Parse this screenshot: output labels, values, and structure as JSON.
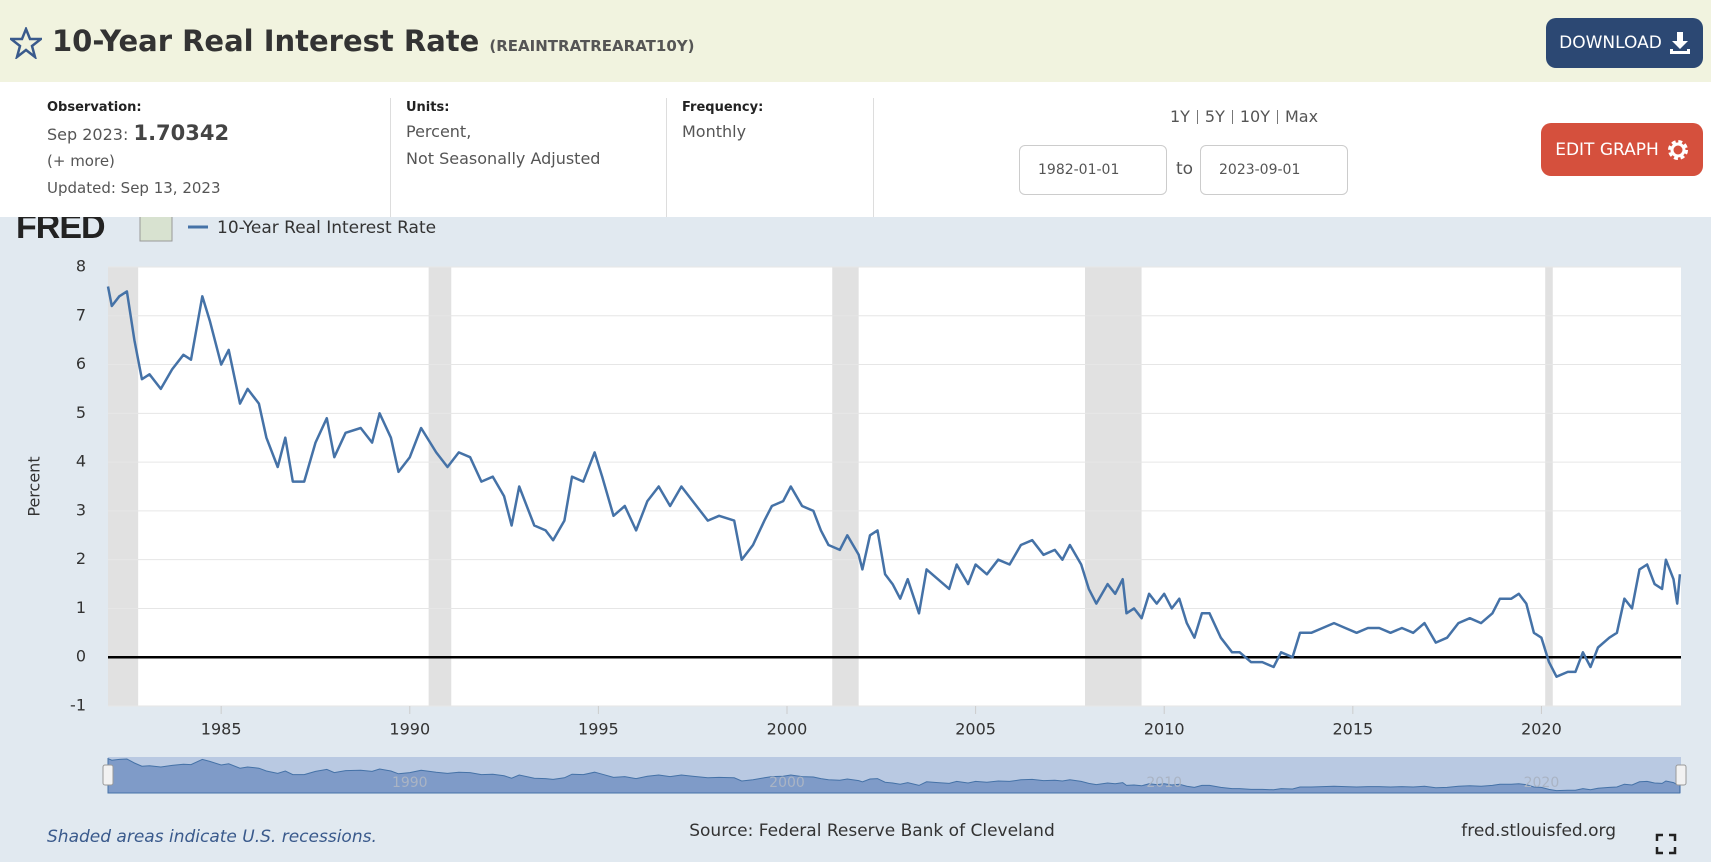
{
  "header": {
    "title": "10-Year Real Interest Rate",
    "series_id": "(REAINTRATREARAT10Y)",
    "download": "DOWNLOAD"
  },
  "info": {
    "observation_label": "Observation:",
    "observation_date": "Sep 2023:",
    "observation_value": "1.70342",
    "more": "(+ more)",
    "updated": "Updated: Sep 13, 2023",
    "units_label": "Units:",
    "units": [
      "Percent,",
      "Not Seasonally Adjusted"
    ],
    "frequency_label": "Frequency:",
    "frequency": "Monthly",
    "ranges": [
      "1Y",
      "5Y",
      "10Y",
      "Max"
    ],
    "start_date": "1982-01-01",
    "to": "to",
    "end_date": "2023-09-01",
    "edit": "EDIT GRAPH"
  },
  "chart_data": {
    "type": "line",
    "brand": "FRED",
    "ylabel": "Percent",
    "grid": true,
    "series": [
      {
        "name": "10-Year Real Interest Rate",
        "color": "#4572a7",
        "x": [
          1982.0,
          1982.1,
          1982.3,
          1982.5,
          1982.7,
          1982.9,
          1983.1,
          1983.4,
          1983.7,
          1984.0,
          1984.2,
          1984.5,
          1984.7,
          1985.0,
          1985.2,
          1985.5,
          1985.7,
          1986.0,
          1986.2,
          1986.5,
          1986.7,
          1986.9,
          1987.2,
          1987.5,
          1987.8,
          1988.0,
          1988.3,
          1988.7,
          1989.0,
          1989.2,
          1989.5,
          1989.7,
          1990.0,
          1990.3,
          1990.7,
          1991.0,
          1991.3,
          1991.6,
          1991.9,
          1992.2,
          1992.5,
          1992.7,
          1992.9,
          1993.3,
          1993.6,
          1993.8,
          1994.1,
          1994.3,
          1994.6,
          1994.9,
          1995.1,
          1995.4,
          1995.7,
          1996.0,
          1996.3,
          1996.6,
          1996.9,
          1997.2,
          1997.5,
          1997.9,
          1998.2,
          1998.6,
          1998.8,
          1999.1,
          1999.4,
          1999.6,
          1999.9,
          2000.1,
          2000.4,
          2000.7,
          2000.9,
          2001.1,
          2001.4,
          2001.6,
          2001.9,
          2002.0,
          2002.2,
          2002.4,
          2002.6,
          2002.8,
          2003.0,
          2003.2,
          2003.5,
          2003.7,
          2004.0,
          2004.3,
          2004.5,
          2004.8,
          2005.0,
          2005.3,
          2005.6,
          2005.9,
          2006.2,
          2006.5,
          2006.8,
          2007.1,
          2007.3,
          2007.5,
          2007.8,
          2008.0,
          2008.2,
          2008.5,
          2008.7,
          2008.9,
          2009.0,
          2009.2,
          2009.4,
          2009.6,
          2009.8,
          2010.0,
          2010.2,
          2010.4,
          2010.6,
          2010.8,
          2011.0,
          2011.2,
          2011.5,
          2011.8,
          2012.0,
          2012.3,
          2012.6,
          2012.9,
          2013.1,
          2013.4,
          2013.6,
          2013.9,
          2014.2,
          2014.5,
          2014.8,
          2015.1,
          2015.4,
          2015.7,
          2016.0,
          2016.3,
          2016.6,
          2016.9,
          2017.2,
          2017.5,
          2017.8,
          2018.1,
          2018.4,
          2018.7,
          2018.9,
          2019.2,
          2019.4,
          2019.6,
          2019.8,
          2020.0,
          2020.2,
          2020.4,
          2020.7,
          2020.9,
          2021.1,
          2021.3,
          2021.5,
          2021.8,
          2022.0,
          2022.2,
          2022.4,
          2022.6,
          2022.8,
          2023.0,
          2023.2,
          2023.3,
          2023.5,
          2023.6,
          2023.67
        ],
        "values": [
          7.6,
          7.2,
          7.4,
          7.5,
          6.5,
          5.7,
          5.8,
          5.5,
          5.9,
          6.2,
          6.1,
          7.4,
          6.9,
          6.0,
          6.3,
          5.2,
          5.5,
          5.2,
          4.5,
          3.9,
          4.5,
          3.6,
          3.6,
          4.4,
          4.9,
          4.1,
          4.6,
          4.7,
          4.4,
          5.0,
          4.5,
          3.8,
          4.1,
          4.7,
          4.2,
          3.9,
          4.2,
          4.1,
          3.6,
          3.7,
          3.3,
          2.7,
          3.5,
          2.7,
          2.6,
          2.4,
          2.8,
          3.7,
          3.6,
          4.2,
          3.7,
          2.9,
          3.1,
          2.6,
          3.2,
          3.5,
          3.1,
          3.5,
          3.2,
          2.8,
          2.9,
          2.8,
          2.0,
          2.3,
          2.8,
          3.1,
          3.2,
          3.5,
          3.1,
          3.0,
          2.6,
          2.3,
          2.2,
          2.5,
          2.1,
          1.8,
          2.5,
          2.6,
          1.7,
          1.5,
          1.2,
          1.6,
          0.9,
          1.8,
          1.6,
          1.4,
          1.9,
          1.5,
          1.9,
          1.7,
          2.0,
          1.9,
          2.3,
          2.4,
          2.1,
          2.2,
          2.0,
          2.3,
          1.9,
          1.4,
          1.1,
          1.5,
          1.3,
          1.6,
          0.9,
          1.0,
          0.8,
          1.3,
          1.1,
          1.3,
          1.0,
          1.2,
          0.7,
          0.4,
          0.9,
          0.9,
          0.4,
          0.1,
          0.1,
          -0.1,
          -0.1,
          -0.2,
          0.1,
          0.0,
          0.5,
          0.5,
          0.6,
          0.7,
          0.6,
          0.5,
          0.6,
          0.6,
          0.5,
          0.6,
          0.5,
          0.7,
          0.3,
          0.4,
          0.7,
          0.8,
          0.7,
          0.9,
          1.2,
          1.2,
          1.3,
          1.1,
          0.5,
          0.4,
          -0.1,
          -0.4,
          -0.3,
          -0.3,
          0.1,
          -0.2,
          0.2,
          0.4,
          0.5,
          1.2,
          1.0,
          1.8,
          1.9,
          1.5,
          1.4,
          2.0,
          1.6,
          1.1,
          1.7
        ]
      }
    ],
    "xlim": [
      1982.0,
      2023.7
    ],
    "xticks": [
      1985,
      1990,
      1995,
      2000,
      2005,
      2010,
      2015,
      2020
    ],
    "ylim": [
      -1,
      8
    ],
    "yticks": [
      -1,
      0,
      1,
      2,
      3,
      4,
      5,
      6,
      7,
      8
    ],
    "recessions": [
      [
        1982.0,
        1982.8
      ],
      [
        1990.5,
        1991.1
      ],
      [
        2001.2,
        2001.9
      ],
      [
        2007.9,
        2009.4
      ],
      [
        2020.1,
        2020.3
      ]
    ],
    "recession_color": "#e1e1e1"
  },
  "footer": {
    "note": "Shaded areas indicate U.S. recessions.",
    "source": "Source: Federal Reserve Bank of Cleveland",
    "site": "fred.stlouisfed.org"
  }
}
